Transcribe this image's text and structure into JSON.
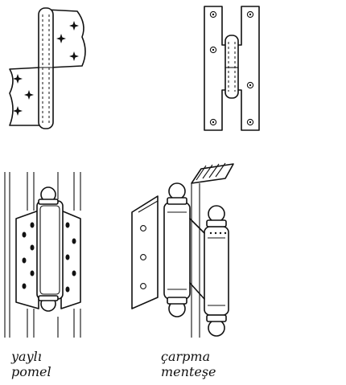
{
  "captions": {
    "spring_hinge": [
      "yaylı",
      "pomel"
    ],
    "swing_hinge": [
      "çarpma",
      "menteşe"
    ]
  },
  "illustrations": [
    "lift-off-flag-hinge",
    "h-pattern-hinge",
    "spring-pivot-hinge",
    "double-action-spring-hinge"
  ]
}
